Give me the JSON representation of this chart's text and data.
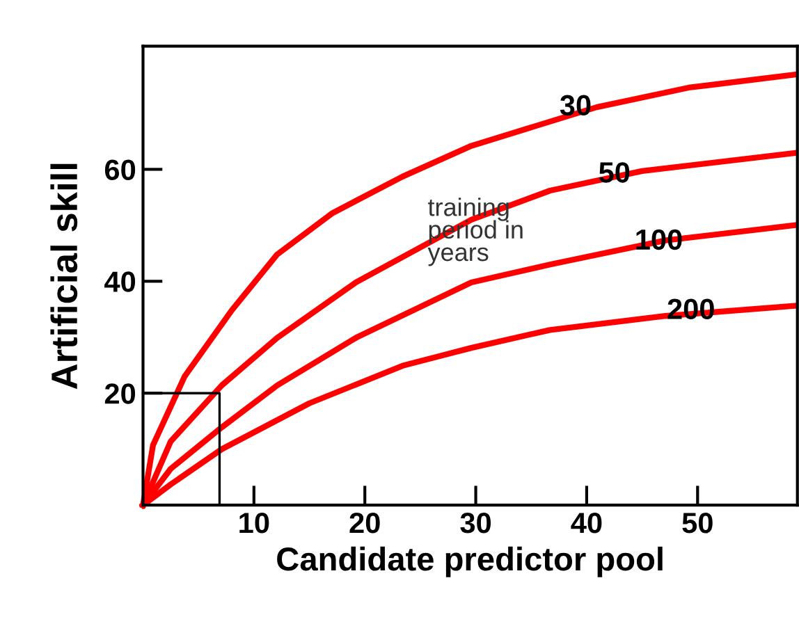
{
  "chart_data": {
    "type": "line",
    "xlabel": "Candidate predictor pool",
    "ylabel": "Artificial skill",
    "xlim": [
      0,
      59
    ],
    "ylim": [
      0,
      82
    ],
    "xticks": [
      10,
      20,
      30,
      40,
      50
    ],
    "yticks": [
      20,
      40,
      60
    ],
    "grid": false,
    "legend": false,
    "series": [
      {
        "color": "#ff0000",
        "x": [
          0,
          0.9,
          3.75,
          8,
          12.1,
          17.1,
          23.4,
          29.6,
          40.9,
          49.2,
          58.7
        ],
        "values": [
          0,
          10.7,
          23,
          34.8,
          44.8,
          52.2,
          58.7,
          64.2,
          71.1,
          74.6,
          76.9
        ]
      },
      {
        "color": "#ff0000",
        "x": [
          0,
          2.5,
          7.1,
          12.1,
          19.2,
          29.6,
          36.7,
          45,
          58.7
        ],
        "values": [
          0,
          11.4,
          21.4,
          29.9,
          39.8,
          51,
          56.2,
          59.7,
          62.9
        ]
      },
      {
        "color": "#ff0000",
        "x": [
          0,
          2.5,
          7.1,
          12.1,
          19.2,
          29.6,
          36.7,
          47.1,
          58.7
        ],
        "values": [
          0,
          6.5,
          13.9,
          21.4,
          29.9,
          39.8,
          43,
          47.3,
          50
        ]
      },
      {
        "color": "#ff0000",
        "x": [
          0,
          2.5,
          7.1,
          15,
          23.4,
          29.6,
          36.7,
          47.1,
          58.7
        ],
        "values": [
          0,
          3.7,
          10,
          18.2,
          24.9,
          28.1,
          31.3,
          33.8,
          35.6
        ]
      },
      {
        "color": "#000000",
        "x": [
          0,
          6.9,
          6.9
        ],
        "values": [
          20,
          20,
          0
        ]
      }
    ],
    "annotations": [
      {
        "text": "30",
        "x": 39,
        "y": 71
      },
      {
        "text": "50",
        "x": 42.5,
        "y": 59
      },
      {
        "text": "100",
        "x": 46.5,
        "y": 47
      },
      {
        "text": "200",
        "x": 49.4,
        "y": 34.6
      },
      "training\nperiod in\nyears"
    ]
  }
}
